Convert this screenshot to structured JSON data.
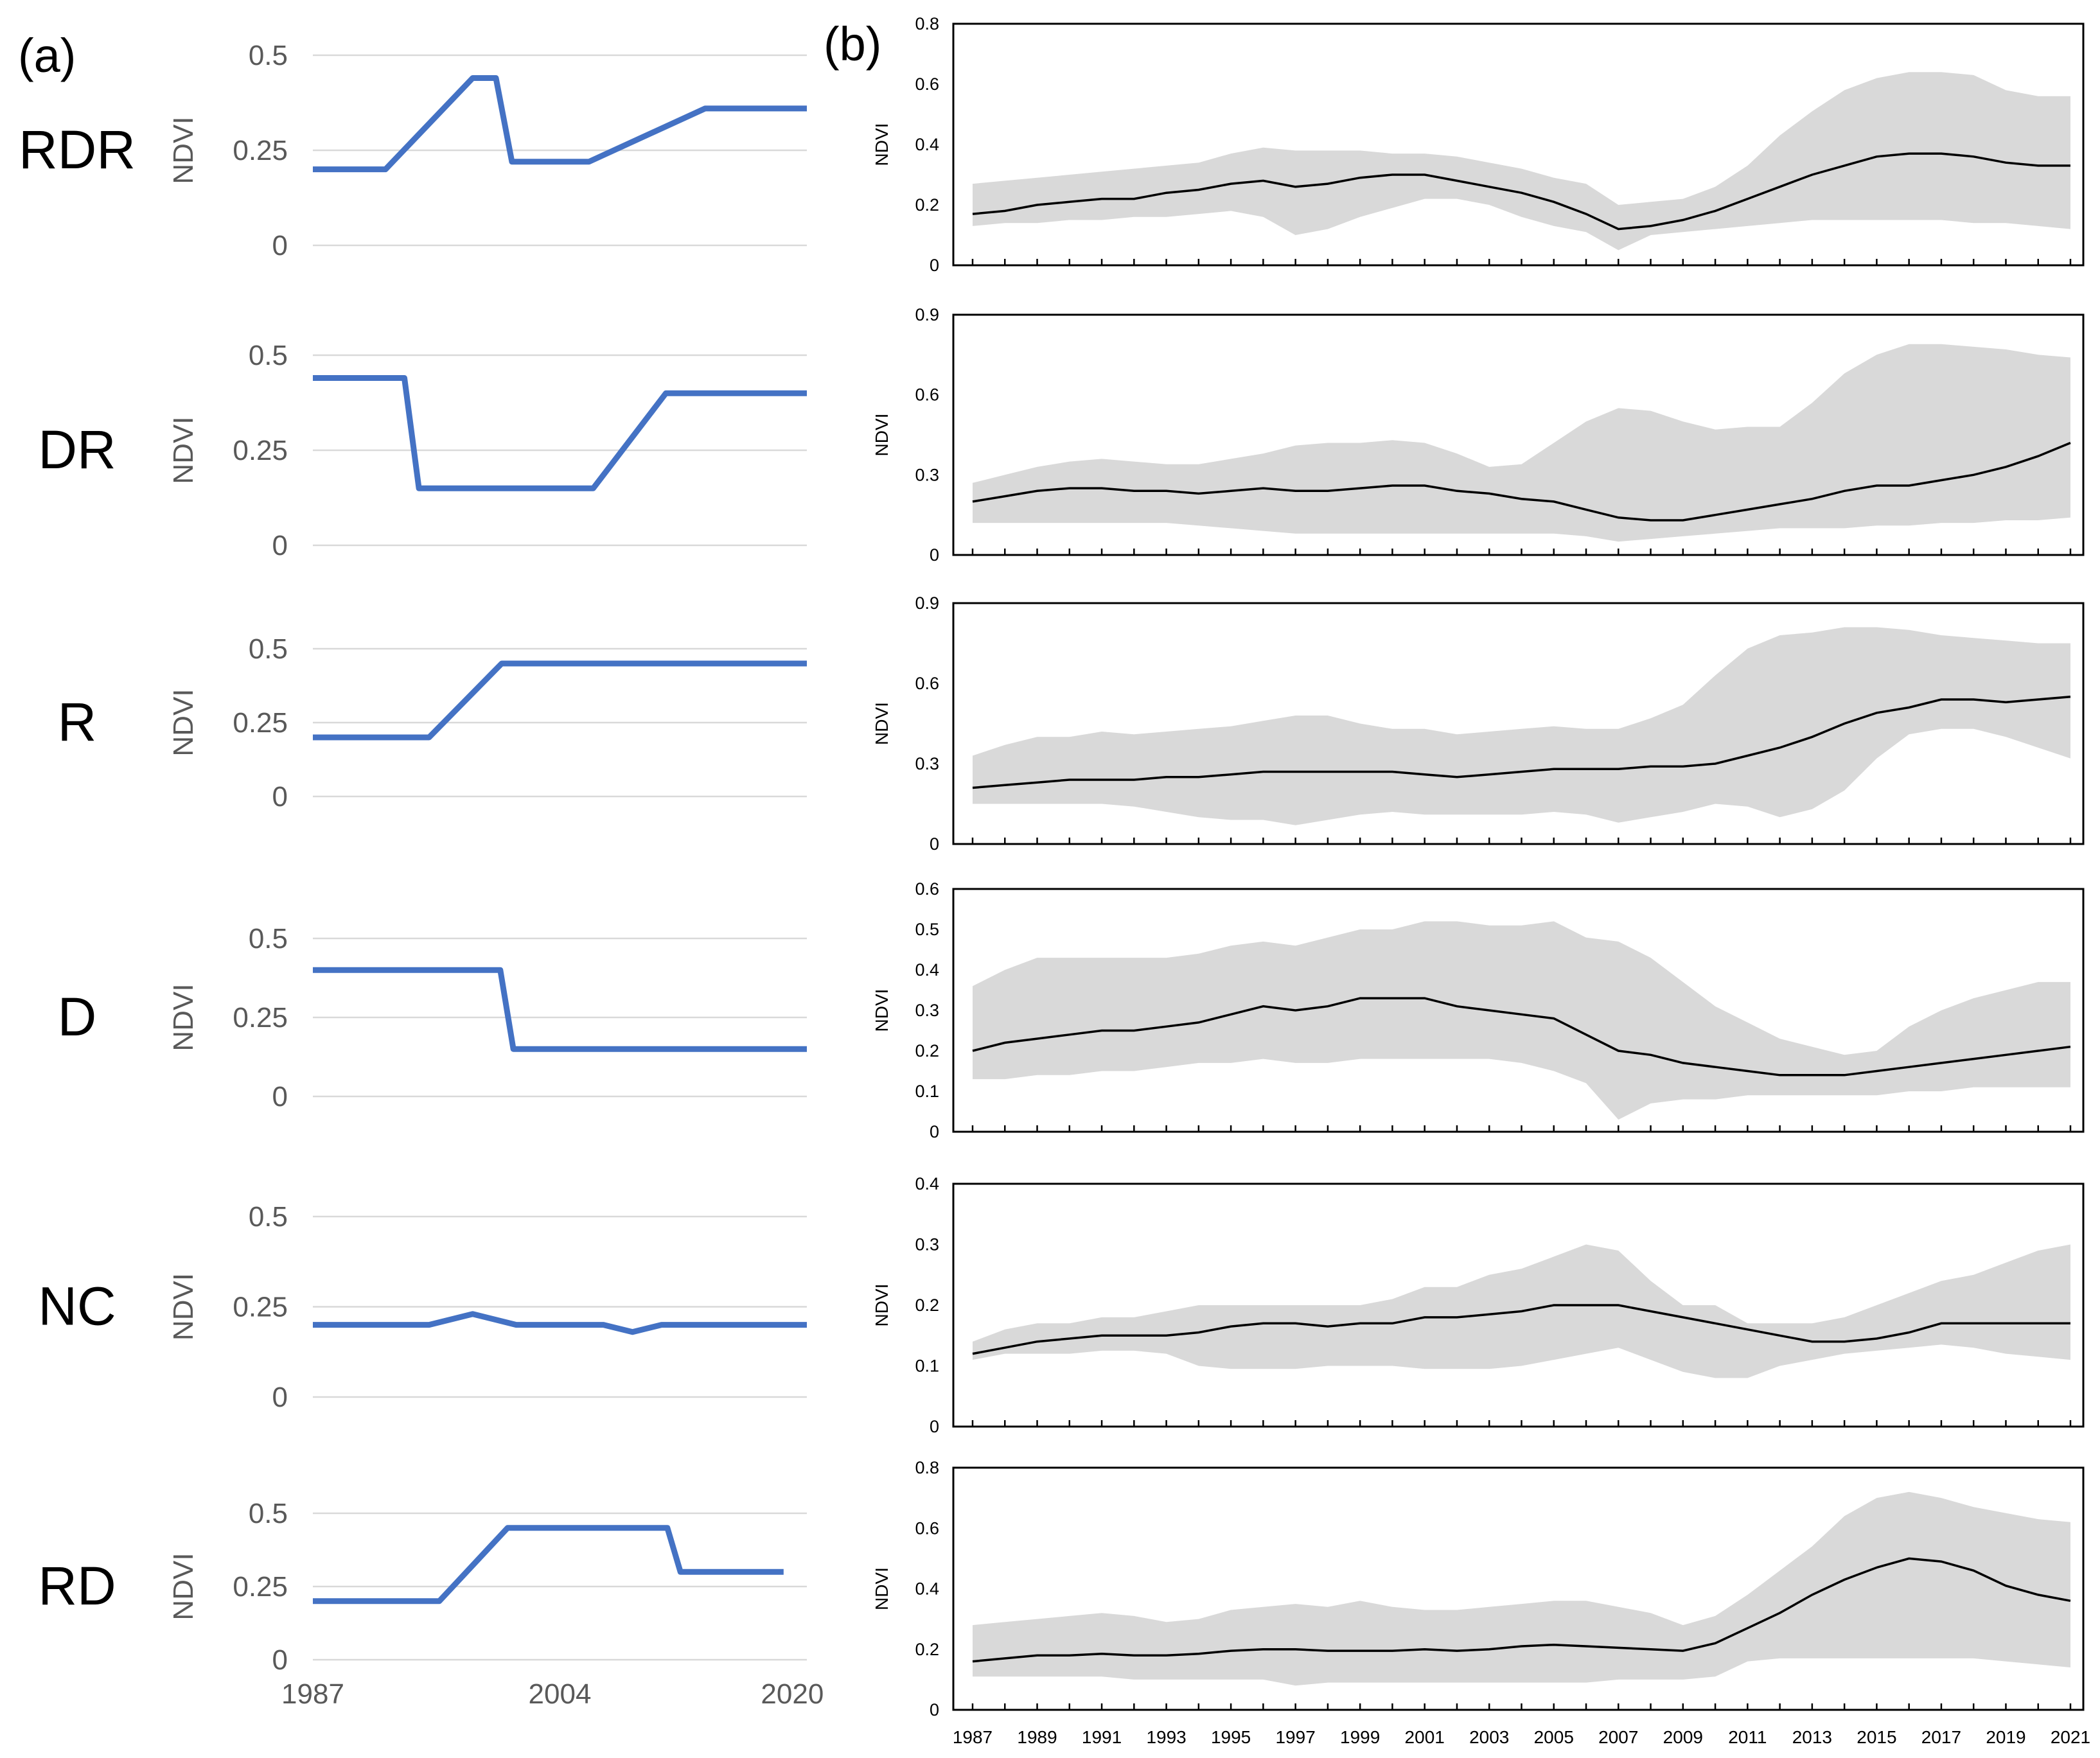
{
  "figure": {
    "panel_a_label": "(a)",
    "panel_b_label": "(b)"
  },
  "colors": {
    "schematic_line": "#4472C4",
    "mean_line": "#000000",
    "band_fill": "#d9d9d9",
    "gridline": "#d9d9d9",
    "frame": "#000000",
    "axis_text_a": "#595959",
    "axis_text_b": "#000000"
  },
  "chart_data": [
    {
      "panel": "a",
      "type": "line",
      "row_label": "RDR",
      "ylabel": "NDVI",
      "ylim": [
        0,
        0.5
      ],
      "y_ticks": [
        "0",
        "0.25",
        "0.5"
      ],
      "xlim": [
        1987,
        2021
      ],
      "x": [
        1987,
        1992,
        1998,
        1999.6,
        2000.7,
        2006,
        2014,
        2021
      ],
      "values": [
        0.2,
        0.2,
        0.44,
        0.44,
        0.22,
        0.22,
        0.36,
        0.36
      ]
    },
    {
      "panel": "a",
      "type": "line",
      "row_label": "DR",
      "ylabel": "NDVI",
      "ylim": [
        0,
        0.5
      ],
      "y_ticks": [
        "0",
        "0.25",
        "0.5"
      ],
      "xlim": [
        1987,
        2021
      ],
      "x": [
        1987,
        1993.3,
        1994.3,
        2006.3,
        2011.3,
        2021
      ],
      "values": [
        0.44,
        0.44,
        0.15,
        0.15,
        0.4,
        0.4
      ]
    },
    {
      "panel": "a",
      "type": "line",
      "row_label": "R",
      "ylabel": "NDVI",
      "ylim": [
        0,
        0.5
      ],
      "y_ticks": [
        "0",
        "0.25",
        "0.5"
      ],
      "xlim": [
        1987,
        2021
      ],
      "x": [
        1987,
        1995,
        2000,
        2021
      ],
      "values": [
        0.2,
        0.2,
        0.45,
        0.45
      ]
    },
    {
      "panel": "a",
      "type": "line",
      "row_label": "D",
      "ylabel": "NDVI",
      "ylim": [
        0,
        0.5
      ],
      "y_ticks": [
        "0",
        "0.25",
        "0.5"
      ],
      "xlim": [
        1987,
        2021
      ],
      "x": [
        1987,
        1999.9,
        2000.8,
        2021
      ],
      "values": [
        0.4,
        0.4,
        0.15,
        0.15
      ]
    },
    {
      "panel": "a",
      "type": "line",
      "row_label": "NC",
      "ylabel": "NDVI",
      "ylim": [
        0,
        0.5
      ],
      "y_ticks": [
        "0",
        "0.25",
        "0.5"
      ],
      "xlim": [
        1987,
        2021
      ],
      "x": [
        1987,
        1995,
        1998,
        2001,
        2007,
        2009,
        2011,
        2021
      ],
      "values": [
        0.2,
        0.2,
        0.23,
        0.2,
        0.2,
        0.18,
        0.2,
        0.2
      ]
    },
    {
      "panel": "a",
      "type": "line",
      "row_label": "RD",
      "ylabel": "NDVI",
      "ylim": [
        0,
        0.5
      ],
      "y_ticks": [
        "0",
        "0.25",
        "0.5"
      ],
      "xlim": [
        1987,
        2021
      ],
      "x": [
        1987,
        1995.7,
        2000.4,
        2011.4,
        2012.3,
        2019.4
      ],
      "values": [
        0.2,
        0.2,
        0.45,
        0.45,
        0.3,
        0.3
      ],
      "x_ticks": [
        "1987",
        "2004",
        "2020"
      ]
    },
    {
      "panel": "b",
      "type": "area",
      "row_label": "RDR",
      "ylabel": "NDVI",
      "ylim": [
        0,
        0.8
      ],
      "y_ticks": [
        "0",
        "0.2",
        "0.4",
        "0.6",
        "0.8"
      ],
      "x": [
        1987,
        1988,
        1989,
        1990,
        1991,
        1992,
        1993,
        1994,
        1995,
        1996,
        1997,
        1998,
        1999,
        2000,
        2001,
        2002,
        2003,
        2004,
        2005,
        2006,
        2007,
        2008,
        2009,
        2010,
        2011,
        2012,
        2013,
        2014,
        2015,
        2016,
        2017,
        2018,
        2019,
        2020,
        2021
      ],
      "mean": [
        0.17,
        0.18,
        0.2,
        0.21,
        0.22,
        0.22,
        0.24,
        0.25,
        0.27,
        0.28,
        0.26,
        0.27,
        0.29,
        0.3,
        0.3,
        0.28,
        0.26,
        0.24,
        0.21,
        0.17,
        0.12,
        0.13,
        0.15,
        0.18,
        0.22,
        0.26,
        0.3,
        0.33,
        0.36,
        0.37,
        0.37,
        0.36,
        0.34,
        0.33,
        0.33
      ],
      "upper": [
        0.27,
        0.28,
        0.29,
        0.3,
        0.31,
        0.32,
        0.33,
        0.34,
        0.37,
        0.39,
        0.38,
        0.38,
        0.38,
        0.37,
        0.37,
        0.36,
        0.34,
        0.32,
        0.29,
        0.27,
        0.2,
        0.21,
        0.22,
        0.26,
        0.33,
        0.43,
        0.51,
        0.58,
        0.62,
        0.64,
        0.64,
        0.63,
        0.58,
        0.56,
        0.56
      ],
      "lower": [
        0.13,
        0.14,
        0.14,
        0.15,
        0.15,
        0.16,
        0.16,
        0.17,
        0.18,
        0.16,
        0.1,
        0.12,
        0.16,
        0.19,
        0.22,
        0.22,
        0.2,
        0.16,
        0.13,
        0.11,
        0.05,
        0.1,
        0.11,
        0.12,
        0.13,
        0.14,
        0.15,
        0.15,
        0.15,
        0.15,
        0.15,
        0.14,
        0.14,
        0.13,
        0.12
      ]
    },
    {
      "panel": "b",
      "type": "area",
      "row_label": "DR",
      "ylabel": "NDVI",
      "ylim": [
        0,
        0.9
      ],
      "y_ticks": [
        "0",
        "0.3",
        "0.6",
        "0.9"
      ],
      "x": [
        1987,
        1988,
        1989,
        1990,
        1991,
        1992,
        1993,
        1994,
        1995,
        1996,
        1997,
        1998,
        1999,
        2000,
        2001,
        2002,
        2003,
        2004,
        2005,
        2006,
        2007,
        2008,
        2009,
        2010,
        2011,
        2012,
        2013,
        2014,
        2015,
        2016,
        2017,
        2018,
        2019,
        2020,
        2021
      ],
      "mean": [
        0.2,
        0.22,
        0.24,
        0.25,
        0.25,
        0.24,
        0.24,
        0.23,
        0.24,
        0.25,
        0.24,
        0.24,
        0.25,
        0.26,
        0.26,
        0.24,
        0.23,
        0.21,
        0.2,
        0.17,
        0.14,
        0.13,
        0.13,
        0.15,
        0.17,
        0.19,
        0.21,
        0.24,
        0.26,
        0.26,
        0.28,
        0.3,
        0.33,
        0.37,
        0.42
      ],
      "upper": [
        0.27,
        0.3,
        0.33,
        0.35,
        0.36,
        0.35,
        0.34,
        0.34,
        0.36,
        0.38,
        0.41,
        0.42,
        0.42,
        0.43,
        0.42,
        0.38,
        0.33,
        0.34,
        0.42,
        0.5,
        0.55,
        0.54,
        0.5,
        0.47,
        0.48,
        0.48,
        0.57,
        0.68,
        0.75,
        0.79,
        0.79,
        0.78,
        0.77,
        0.75,
        0.74
      ],
      "lower": [
        0.12,
        0.12,
        0.12,
        0.12,
        0.12,
        0.12,
        0.12,
        0.11,
        0.1,
        0.09,
        0.08,
        0.08,
        0.08,
        0.08,
        0.08,
        0.08,
        0.08,
        0.08,
        0.08,
        0.07,
        0.05,
        0.06,
        0.07,
        0.08,
        0.09,
        0.1,
        0.1,
        0.1,
        0.11,
        0.11,
        0.12,
        0.12,
        0.13,
        0.13,
        0.14
      ]
    },
    {
      "panel": "b",
      "type": "area",
      "row_label": "R",
      "ylabel": "NDVI",
      "ylim": [
        0,
        0.9
      ],
      "y_ticks": [
        "0",
        "0.3",
        "0.6",
        "0.9"
      ],
      "x": [
        1987,
        1988,
        1989,
        1990,
        1991,
        1992,
        1993,
        1994,
        1995,
        1996,
        1997,
        1998,
        1999,
        2000,
        2001,
        2002,
        2003,
        2004,
        2005,
        2006,
        2007,
        2008,
        2009,
        2010,
        2011,
        2012,
        2013,
        2014,
        2015,
        2016,
        2017,
        2018,
        2019,
        2020,
        2021
      ],
      "mean": [
        0.21,
        0.22,
        0.23,
        0.24,
        0.24,
        0.24,
        0.25,
        0.25,
        0.26,
        0.27,
        0.27,
        0.27,
        0.27,
        0.27,
        0.26,
        0.25,
        0.26,
        0.27,
        0.28,
        0.28,
        0.28,
        0.29,
        0.29,
        0.3,
        0.33,
        0.36,
        0.4,
        0.45,
        0.49,
        0.51,
        0.54,
        0.54,
        0.53,
        0.54,
        0.55
      ],
      "upper": [
        0.33,
        0.37,
        0.4,
        0.4,
        0.42,
        0.41,
        0.42,
        0.43,
        0.44,
        0.46,
        0.48,
        0.48,
        0.45,
        0.43,
        0.43,
        0.41,
        0.42,
        0.43,
        0.44,
        0.43,
        0.43,
        0.47,
        0.52,
        0.63,
        0.73,
        0.78,
        0.79,
        0.81,
        0.81,
        0.8,
        0.78,
        0.77,
        0.76,
        0.75,
        0.75
      ],
      "lower": [
        0.15,
        0.15,
        0.15,
        0.15,
        0.15,
        0.14,
        0.12,
        0.1,
        0.09,
        0.09,
        0.07,
        0.09,
        0.11,
        0.12,
        0.11,
        0.11,
        0.11,
        0.11,
        0.12,
        0.11,
        0.08,
        0.1,
        0.12,
        0.15,
        0.14,
        0.1,
        0.13,
        0.2,
        0.32,
        0.41,
        0.43,
        0.43,
        0.4,
        0.36,
        0.32
      ]
    },
    {
      "panel": "b",
      "type": "area",
      "row_label": "D",
      "ylabel": "NDVI",
      "ylim": [
        0,
        0.6
      ],
      "y_ticks": [
        "0",
        "0.1",
        "0.2",
        "0.3",
        "0.4",
        "0.5",
        "0.6"
      ],
      "x": [
        1987,
        1988,
        1989,
        1990,
        1991,
        1992,
        1993,
        1994,
        1995,
        1996,
        1997,
        1998,
        1999,
        2000,
        2001,
        2002,
        2003,
        2004,
        2005,
        2006,
        2007,
        2008,
        2009,
        2010,
        2011,
        2012,
        2013,
        2014,
        2015,
        2016,
        2017,
        2018,
        2019,
        2020,
        2021
      ],
      "mean": [
        0.2,
        0.22,
        0.23,
        0.24,
        0.25,
        0.25,
        0.26,
        0.27,
        0.29,
        0.31,
        0.3,
        0.31,
        0.33,
        0.33,
        0.33,
        0.31,
        0.3,
        0.29,
        0.28,
        0.24,
        0.2,
        0.19,
        0.17,
        0.16,
        0.15,
        0.14,
        0.14,
        0.14,
        0.15,
        0.16,
        0.17,
        0.18,
        0.19,
        0.2,
        0.21
      ],
      "upper": [
        0.36,
        0.4,
        0.43,
        0.43,
        0.43,
        0.43,
        0.43,
        0.44,
        0.46,
        0.47,
        0.46,
        0.48,
        0.5,
        0.5,
        0.52,
        0.52,
        0.51,
        0.51,
        0.52,
        0.48,
        0.47,
        0.43,
        0.37,
        0.31,
        0.27,
        0.23,
        0.21,
        0.19,
        0.2,
        0.26,
        0.3,
        0.33,
        0.35,
        0.37,
        0.37
      ],
      "lower": [
        0.13,
        0.13,
        0.14,
        0.14,
        0.15,
        0.15,
        0.16,
        0.17,
        0.17,
        0.18,
        0.17,
        0.17,
        0.18,
        0.18,
        0.18,
        0.18,
        0.18,
        0.17,
        0.15,
        0.12,
        0.03,
        0.07,
        0.08,
        0.08,
        0.09,
        0.09,
        0.09,
        0.09,
        0.09,
        0.1,
        0.1,
        0.11,
        0.11,
        0.11,
        0.11
      ]
    },
    {
      "panel": "b",
      "type": "area",
      "row_label": "NC",
      "ylabel": "NDVI",
      "ylim": [
        0,
        0.4
      ],
      "y_ticks": [
        "0",
        "0.1",
        "0.2",
        "0.3",
        "0.4"
      ],
      "x": [
        1987,
        1988,
        1989,
        1990,
        1991,
        1992,
        1993,
        1994,
        1995,
        1996,
        1997,
        1998,
        1999,
        2000,
        2001,
        2002,
        2003,
        2004,
        2005,
        2006,
        2007,
        2008,
        2009,
        2010,
        2011,
        2012,
        2013,
        2014,
        2015,
        2016,
        2017,
        2018,
        2019,
        2020,
        2021
      ],
      "mean": [
        0.12,
        0.13,
        0.14,
        0.145,
        0.15,
        0.15,
        0.15,
        0.155,
        0.165,
        0.17,
        0.17,
        0.165,
        0.17,
        0.17,
        0.18,
        0.18,
        0.185,
        0.19,
        0.2,
        0.2,
        0.2,
        0.19,
        0.18,
        0.17,
        0.16,
        0.15,
        0.14,
        0.14,
        0.145,
        0.155,
        0.17,
        0.17,
        0.17,
        0.17,
        0.17
      ],
      "upper": [
        0.14,
        0.16,
        0.17,
        0.17,
        0.18,
        0.18,
        0.19,
        0.2,
        0.2,
        0.2,
        0.2,
        0.2,
        0.2,
        0.21,
        0.23,
        0.23,
        0.25,
        0.26,
        0.28,
        0.3,
        0.29,
        0.24,
        0.2,
        0.2,
        0.17,
        0.17,
        0.17,
        0.18,
        0.2,
        0.22,
        0.24,
        0.25,
        0.27,
        0.29,
        0.3
      ],
      "lower": [
        0.11,
        0.12,
        0.12,
        0.12,
        0.125,
        0.125,
        0.12,
        0.1,
        0.095,
        0.095,
        0.095,
        0.1,
        0.1,
        0.1,
        0.095,
        0.095,
        0.095,
        0.1,
        0.11,
        0.12,
        0.13,
        0.11,
        0.09,
        0.08,
        0.08,
        0.1,
        0.11,
        0.12,
        0.125,
        0.13,
        0.135,
        0.13,
        0.12,
        0.115,
        0.11
      ]
    },
    {
      "panel": "b",
      "type": "area",
      "row_label": "RD",
      "ylabel": "NDVI",
      "ylim": [
        0,
        0.8
      ],
      "y_ticks": [
        "0",
        "0.2",
        "0.4",
        "0.6",
        "0.8"
      ],
      "x": [
        1987,
        1988,
        1989,
        1990,
        1991,
        1992,
        1993,
        1994,
        1995,
        1996,
        1997,
        1998,
        1999,
        2000,
        2001,
        2002,
        2003,
        2004,
        2005,
        2006,
        2007,
        2008,
        2009,
        2010,
        2011,
        2012,
        2013,
        2014,
        2015,
        2016,
        2017,
        2018,
        2019,
        2020,
        2021
      ],
      "mean": [
        0.16,
        0.17,
        0.18,
        0.18,
        0.185,
        0.18,
        0.18,
        0.185,
        0.195,
        0.2,
        0.2,
        0.195,
        0.195,
        0.195,
        0.2,
        0.195,
        0.2,
        0.21,
        0.215,
        0.21,
        0.205,
        0.2,
        0.195,
        0.22,
        0.27,
        0.32,
        0.38,
        0.43,
        0.47,
        0.5,
        0.49,
        0.46,
        0.41,
        0.38,
        0.36
      ],
      "upper": [
        0.28,
        0.29,
        0.3,
        0.31,
        0.32,
        0.31,
        0.29,
        0.3,
        0.33,
        0.34,
        0.35,
        0.34,
        0.36,
        0.34,
        0.33,
        0.33,
        0.34,
        0.35,
        0.36,
        0.36,
        0.34,
        0.32,
        0.28,
        0.31,
        0.38,
        0.46,
        0.54,
        0.64,
        0.7,
        0.72,
        0.7,
        0.67,
        0.65,
        0.63,
        0.62
      ],
      "lower": [
        0.11,
        0.11,
        0.11,
        0.11,
        0.11,
        0.1,
        0.1,
        0.1,
        0.1,
        0.1,
        0.08,
        0.09,
        0.09,
        0.09,
        0.09,
        0.09,
        0.09,
        0.09,
        0.09,
        0.09,
        0.1,
        0.1,
        0.1,
        0.11,
        0.16,
        0.17,
        0.17,
        0.17,
        0.17,
        0.17,
        0.17,
        0.17,
        0.16,
        0.15,
        0.14
      ],
      "x_ticks": [
        "1987",
        "1989",
        "1991",
        "1993",
        "1995",
        "1997",
        "1999",
        "2001",
        "2003",
        "2005",
        "2007",
        "2009",
        "2011",
        "2013",
        "2015",
        "2017",
        "2019",
        "2021"
      ]
    }
  ]
}
